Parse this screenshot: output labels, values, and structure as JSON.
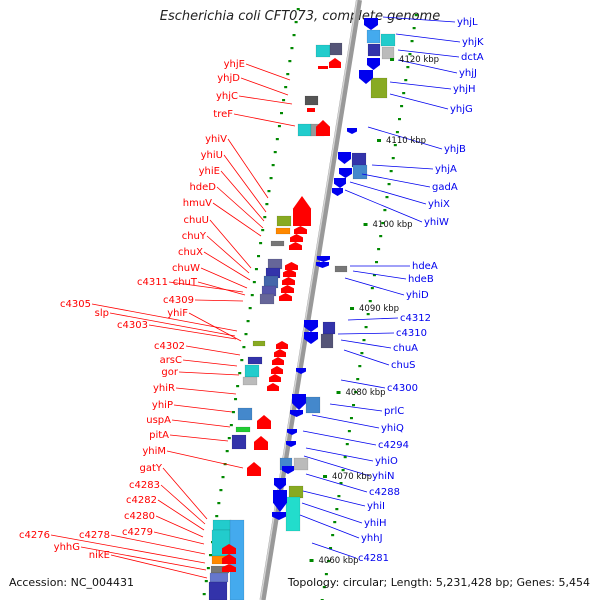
{
  "title": "Escherichia coli CFT073, complete genome",
  "footer": {
    "accession": "Accession: NC_004431",
    "topology": "Topology: circular; Length: 5,231,428 bp; Genes: 5,454"
  },
  "colors": {
    "left_strand": "#ff0000",
    "right_strand": "#0000ee",
    "tick": "#008800",
    "backbone": "#999999"
  },
  "scale_labels": [
    "4120 kbp",
    "4110 kbp",
    "4100 kbp",
    "4090 kbp",
    "4080 kbp",
    "4070 kbp",
    "4060 kbp"
  ],
  "left_labels": [
    "yhjE",
    "yhjD",
    "yhjC",
    "treF",
    "yhiV",
    "yhiU",
    "yhiE",
    "hdeD",
    "hmuV",
    "chuU",
    "chuY",
    "chuX",
    "chuW",
    "c4311",
    "chuT",
    "c4309",
    "c4305",
    "slp",
    "c4303",
    "yhiF",
    "c4302",
    "arsC",
    "gor",
    "yhiR",
    "yhiP",
    "uspA",
    "pitA",
    "yhiM",
    "gatY",
    "c4283",
    "c4282",
    "c4280",
    "c4279",
    "c4278",
    "c4276",
    "yhhG",
    "nikE"
  ],
  "right_labels": [
    "yhjL",
    "yhjK",
    "dctA",
    "yhjJ",
    "yhjH",
    "yhjG",
    "yhjB",
    "yhjA",
    "gadA",
    "yhiX",
    "yhiW",
    "hdeA",
    "hdeB",
    "yhiD",
    "c4312",
    "c4310",
    "chuA",
    "chuS",
    "c4300",
    "prlC",
    "yhiQ",
    "c4294",
    "yhiO",
    "yhiN",
    "c4288",
    "yhiI",
    "yhiH",
    "yhhJ",
    "c4281"
  ]
}
